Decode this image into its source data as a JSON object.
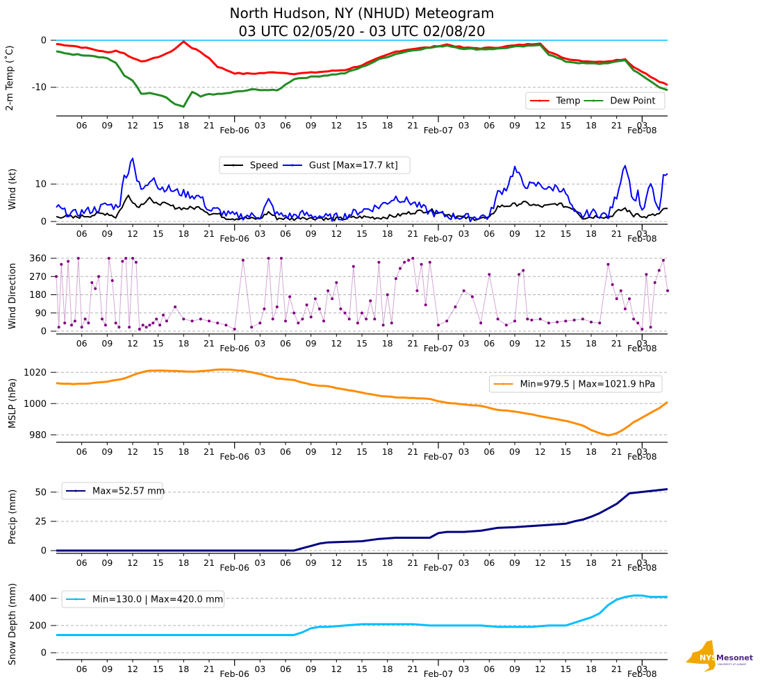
{
  "title_line1": "North Hudson, NY (NHUD) Meteogram",
  "title_line2": "03 UTC 02/05/20 - 03 UTC 02/08/20",
  "logo": {
    "name": "nys-mesonet-logo",
    "text_main": "NYS",
    "text_brand": "Mesonet",
    "text_sub": "UNIVERSITY AT ALBANY",
    "color_state": "#F0A800",
    "color_brand": "#4B2683"
  },
  "chart_data": [
    {
      "id": "temp",
      "type": "line",
      "ylabel": "2-m Temp ($^\\circ$C)",
      "ylabel_display": "2-m Temp (˚C)",
      "ylim": [
        -15.5,
        0.0
      ],
      "yticks": [
        0,
        -10
      ],
      "grid": "y-dashed",
      "reference_line": {
        "value": 0,
        "color": "#00BFFF"
      },
      "legend": {
        "placement": "lower-right",
        "columns": 2,
        "entries": [
          "Temp",
          "Dew Point"
        ]
      },
      "x_hours": [
        0,
        2,
        4,
        6,
        7,
        8,
        9,
        10,
        11,
        12,
        13,
        14,
        15,
        16,
        17,
        18,
        19,
        20,
        21,
        22,
        23,
        24,
        26,
        28,
        30,
        32,
        34,
        36,
        38,
        40,
        42,
        44,
        46,
        48,
        50,
        52,
        54,
        56,
        57,
        58,
        60,
        62,
        64,
        66,
        67,
        68,
        69,
        70,
        71,
        72
      ],
      "series": [
        {
          "name": "Temp",
          "color": "#FF0000",
          "values": [
            -0.8,
            -1.2,
            -1.8,
            -2.6,
            -2.2,
            -2.8,
            -3.8,
            -4.4,
            -4.2,
            -3.5,
            -2.9,
            -1.8,
            -0.3,
            -1.6,
            -2.5,
            -3.8,
            -5.6,
            -6.3,
            -7.0,
            -7.1,
            -7.1,
            -7.0,
            -6.8,
            -7.1,
            -6.9,
            -6.6,
            -6.3,
            -5.3,
            -3.8,
            -2.4,
            -1.8,
            -1.5,
            -0.9,
            -1.6,
            -1.7,
            -1.5,
            -1.1,
            -0.8,
            -0.6,
            -2.5,
            -3.9,
            -4.4,
            -4.6,
            -4.2,
            -4.0,
            -5.7,
            -6.6,
            -7.8,
            -8.8,
            -9.5
          ]
        },
        {
          "name": "Dew Point",
          "color": "#228B22",
          "values": [
            -2.4,
            -3.0,
            -3.2,
            -3.8,
            -4.8,
            -7.5,
            -8.5,
            -11.4,
            -11.3,
            -11.6,
            -12.3,
            -13.6,
            -14.2,
            -11.0,
            -12.0,
            -11.4,
            -11.5,
            -11.3,
            -11.0,
            -10.8,
            -10.5,
            -10.5,
            -10.7,
            -8.2,
            -7.8,
            -7.4,
            -7.0,
            -5.7,
            -4.1,
            -2.9,
            -2.1,
            -1.6,
            -1.1,
            -1.8,
            -1.9,
            -1.8,
            -1.4,
            -1.2,
            -0.9,
            -3.0,
            -4.5,
            -4.9,
            -5.0,
            -4.6,
            -4.2,
            -6.4,
            -7.4,
            -8.8,
            -10.0,
            -10.6
          ]
        }
      ]
    },
    {
      "id": "wind",
      "type": "line",
      "ylabel": "Wind (kt)",
      "ylim": [
        0,
        18
      ],
      "yticks": [
        0,
        10
      ],
      "grid": "y-dashed",
      "legend": {
        "placement": "upper-center",
        "columns": 2,
        "entries": [
          "Speed",
          "Gust [Max=17.7 kt]"
        ]
      },
      "x_hours": [
        0,
        1,
        2,
        3,
        4,
        5,
        6,
        7,
        7.5,
        8,
        8.5,
        9,
        9.5,
        10,
        10.5,
        11,
        11.5,
        12,
        13,
        14,
        15,
        16,
        17,
        18,
        19,
        19.5,
        20,
        21,
        22,
        23,
        24,
        25,
        26,
        27,
        28,
        29,
        30,
        31,
        32,
        33,
        34,
        36,
        38,
        40,
        42,
        44,
        46,
        48,
        49,
        50,
        51,
        52,
        53,
        54,
        55,
        56,
        57,
        58,
        59,
        60,
        61,
        62,
        63,
        64,
        65,
        66,
        67,
        68,
        68.5,
        69,
        70,
        71,
        71.5,
        72
      ],
      "series": [
        {
          "name": "Speed",
          "color": "#000000",
          "values": [
            1.2,
            1.5,
            1.0,
            1.4,
            1.6,
            2.0,
            2.2,
            1.2,
            3.0,
            5.0,
            7.0,
            5.5,
            4.0,
            4.5,
            5.5,
            6.5,
            4.5,
            5.0,
            4.5,
            3.8,
            3.5,
            3.6,
            3.8,
            2.2,
            2.0,
            1.5,
            1.0,
            0.8,
            1.0,
            0.7,
            0.8,
            2.5,
            0.9,
            0.8,
            0.7,
            1.2,
            0.8,
            1.0,
            0.6,
            0.7,
            0.8,
            1.2,
            1.0,
            1.5,
            2.5,
            3.0,
            2.0,
            1.0,
            0.8,
            0.9,
            0.8,
            4.0,
            4.2,
            4.5,
            5.0,
            4.5,
            4.0,
            4.2,
            4.8,
            4.0,
            3.5,
            1.0,
            1.2,
            1.5,
            1.0,
            2.5,
            3.5,
            1.5,
            2.5,
            1.0,
            1.5,
            2.0,
            3.0,
            3.5
          ]
        },
        {
          "name": "Gust [Max=17.7 kt]",
          "color": "#0000FF",
          "values": [
            4.0,
            2.5,
            2.0,
            2.5,
            3.0,
            3.5,
            4.5,
            4.0,
            5.0,
            12.0,
            13.5,
            17.7,
            11.0,
            8.5,
            9.0,
            11.0,
            12.5,
            9.0,
            9.0,
            8.0,
            7.5,
            7.0,
            6.5,
            3.0,
            3.0,
            2.5,
            2.0,
            1.5,
            1.5,
            1.5,
            1.5,
            5.5,
            1.8,
            1.5,
            1.5,
            2.0,
            1.5,
            1.5,
            1.0,
            1.2,
            1.5,
            3.0,
            4.0,
            6.5,
            5.0,
            2.5,
            1.5,
            1.2,
            1.0,
            1.5,
            1.2,
            7.5,
            9.0,
            14.2,
            10.0,
            9.5,
            10.0,
            8.5,
            9.5,
            7.5,
            2.0,
            1.5,
            2.5,
            2.0,
            1.5,
            7.0,
            16.0,
            5.0,
            8.0,
            2.0,
            10.0,
            2.0,
            11.5,
            12.8
          ]
        }
      ]
    },
    {
      "id": "wind_direction",
      "type": "scatter",
      "ylabel": "Wind Direction",
      "ylim": [
        0,
        360
      ],
      "yticks": [
        0,
        90,
        180,
        270,
        360
      ],
      "grid": "y-dashed",
      "color": "#800080",
      "x_hours": [
        0,
        0.3,
        0.6,
        1,
        1.4,
        1.8,
        2.2,
        2.6,
        3,
        3.4,
        3.8,
        4.2,
        4.6,
        5,
        5.4,
        5.8,
        6.2,
        6.6,
        7,
        7.4,
        7.8,
        8.2,
        8.6,
        9,
        9.4,
        9.8,
        10.2,
        10.6,
        11,
        11.4,
        11.8,
        12.2,
        12.6,
        13,
        14,
        15,
        16,
        17,
        18,
        19,
        20,
        21,
        22,
        23,
        24,
        24.5,
        25,
        25.5,
        26,
        26.5,
        27,
        27.5,
        28,
        28.5,
        29,
        29.5,
        30,
        30.5,
        31,
        31.5,
        32,
        32.5,
        33,
        33.5,
        34,
        34.5,
        35,
        35.5,
        36,
        36.5,
        37,
        37.5,
        38,
        38.5,
        39,
        39.5,
        40,
        40.5,
        41,
        41.5,
        42,
        42.5,
        43,
        43.5,
        44,
        45,
        46,
        47,
        48,
        49,
        50,
        51,
        52,
        53,
        54,
        54.5,
        55,
        55.5,
        56,
        57,
        58,
        59,
        60,
        61,
        62,
        63,
        64,
        65,
        65.5,
        66,
        66.5,
        67,
        67.5,
        68,
        68.5,
        69,
        69.5,
        70,
        70.5,
        71,
        71.5,
        72
      ],
      "values": [
        270,
        20,
        330,
        40,
        345,
        30,
        50,
        360,
        20,
        60,
        40,
        240,
        210,
        270,
        60,
        30,
        360,
        250,
        40,
        20,
        345,
        360,
        20,
        360,
        340,
        10,
        30,
        20,
        30,
        40,
        60,
        30,
        80,
        50,
        120,
        60,
        50,
        60,
        50,
        40,
        30,
        10,
        350,
        20,
        40,
        110,
        360,
        60,
        120,
        360,
        50,
        170,
        90,
        40,
        60,
        130,
        70,
        160,
        110,
        50,
        200,
        160,
        240,
        110,
        90,
        60,
        320,
        40,
        90,
        60,
        150,
        60,
        340,
        30,
        180,
        40,
        260,
        310,
        340,
        350,
        360,
        200,
        330,
        130,
        340,
        30,
        50,
        120,
        200,
        170,
        40,
        280,
        60,
        30,
        50,
        280,
        300,
        60,
        55,
        60,
        40,
        45,
        50,
        55,
        60,
        45,
        40,
        330,
        230,
        160,
        200,
        110,
        160,
        60,
        40,
        10,
        280,
        20,
        240,
        300,
        350,
        200,
        230,
        360,
        240
      ]
    },
    {
      "id": "mslp",
      "type": "line",
      "ylabel": "MSLP (hPa)",
      "ylim": [
        977,
        1025
      ],
      "yticks": [
        980,
        1000,
        1020
      ],
      "grid": "y-dashed",
      "color": "#FF8C00",
      "legend": {
        "placement": "upper-right",
        "entries": [
          "Min=979.5 | Max=1021.9 hPa"
        ]
      },
      "x_hours": [
        0,
        2,
        4,
        6,
        8,
        9,
        10,
        11,
        12,
        14,
        16,
        18,
        19,
        20,
        21,
        22,
        23,
        24,
        26,
        28,
        30,
        32,
        34,
        36,
        38,
        40,
        42,
        44,
        45,
        46,
        48,
        50,
        52,
        54,
        56,
        58,
        60,
        62,
        63,
        64,
        65,
        66,
        67,
        68,
        69,
        70,
        71,
        72
      ],
      "values": [
        1013,
        1012.5,
        1013,
        1014,
        1016,
        1018,
        1020,
        1021,
        1021.2,
        1020.8,
        1020.5,
        1021,
        1021.8,
        1021.9,
        1021.5,
        1021,
        1020,
        1019,
        1016,
        1015,
        1012,
        1011,
        1009,
        1007,
        1005,
        1004,
        1003.5,
        1003,
        1001.5,
        1000.5,
        999.5,
        998.5,
        996,
        995,
        993,
        991,
        989,
        986,
        983,
        981,
        979.5,
        981,
        984,
        988,
        991,
        994,
        997,
        1001
      ]
    },
    {
      "id": "precip",
      "type": "line",
      "ylabel": "Precip (mm)",
      "ylim": [
        0,
        60
      ],
      "yticks": [
        0,
        25,
        50
      ],
      "grid": "y-dashed",
      "color": "#000080",
      "legend": {
        "placement": "upper-left",
        "entries": [
          "Max=52.57 mm"
        ]
      },
      "x_hours": [
        0,
        28,
        29,
        30,
        31,
        32,
        34,
        36,
        38,
        40,
        42,
        44,
        45,
        46,
        48,
        50,
        52,
        54,
        56,
        58,
        60,
        61,
        62,
        63,
        64,
        65,
        66,
        67,
        67.5,
        72
      ],
      "values": [
        0,
        0,
        2,
        4,
        6,
        7,
        7.5,
        8,
        10,
        11,
        11,
        11,
        15,
        16,
        16,
        17,
        19.5,
        20,
        21,
        22,
        23,
        25,
        26.5,
        29,
        32,
        36,
        40,
        46,
        49,
        52.57
      ]
    },
    {
      "id": "snow_depth",
      "type": "line",
      "ylabel": "Snow Depth (mm)",
      "ylim": [
        -30,
        470
      ],
      "yticks": [
        0,
        200,
        400
      ],
      "grid": "y-dashed",
      "color": "#00BFFF",
      "legend": {
        "placement": "upper-left",
        "entries": [
          "Min=130.0 | Max=420.0 mm"
        ]
      },
      "x_hours": [
        0,
        28,
        29,
        30,
        31,
        32,
        34,
        36,
        38,
        40,
        42,
        44,
        46,
        48,
        50,
        52,
        54,
        55,
        56,
        57,
        58,
        60,
        61,
        62,
        63,
        64,
        65,
        66,
        67,
        68,
        69,
        70,
        72
      ],
      "values": [
        130,
        130,
        150,
        180,
        190,
        190,
        200,
        210,
        210,
        210,
        210,
        200,
        200,
        200,
        200,
        190,
        190,
        190,
        190,
        195,
        200,
        200,
        220,
        240,
        260,
        290,
        350,
        390,
        410,
        420,
        420,
        410,
        410
      ]
    }
  ],
  "x_axis": {
    "start": "03 UTC 02/05/20",
    "end": "03 UTC 02/08/20",
    "hour_ticks": [
      "06",
      "09",
      "12",
      "15",
      "18",
      "21",
      "03",
      "06",
      "09",
      "12",
      "15",
      "18",
      "21",
      "03",
      "06",
      "09",
      "12",
      "15",
      "18",
      "21",
      "03"
    ],
    "day_ticks": [
      "Feb-06",
      "Feb-07",
      "Feb-08"
    ]
  }
}
